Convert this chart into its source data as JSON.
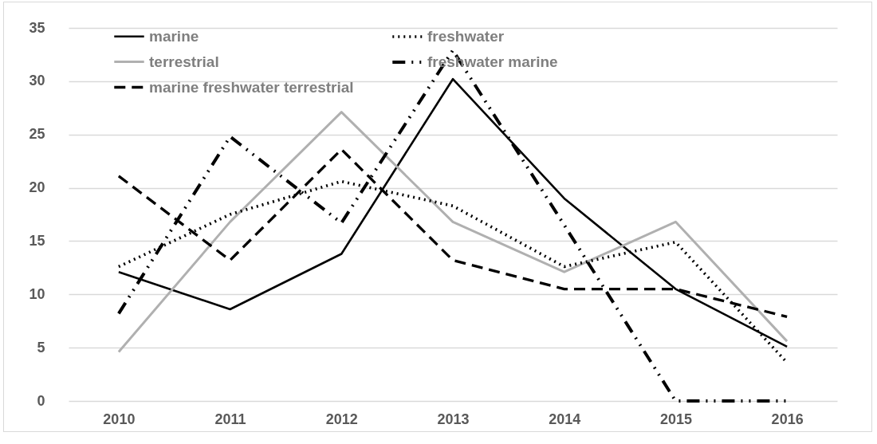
{
  "chart_data": {
    "type": "line",
    "categories": [
      "2010",
      "2011",
      "2012",
      "2013",
      "2014",
      "2015",
      "2016"
    ],
    "ylim": [
      0,
      35
    ],
    "yticks": [
      0,
      5,
      10,
      15,
      20,
      25,
      30,
      35
    ],
    "grid": "y",
    "legend": "top",
    "marker": "none",
    "series": [
      {
        "name": "marine",
        "color": "#000000",
        "line_style": "solid",
        "values": [
          12.1,
          8.6,
          13.8,
          30.2,
          19.0,
          10.5,
          5.1
        ]
      },
      {
        "name": "terrestrial",
        "color": "#b0b0b0",
        "line_style": "solid",
        "values": [
          4.6,
          16.8,
          27.1,
          16.8,
          12.1,
          16.8,
          5.6
        ]
      },
      {
        "name": "marine freshwater terrestrial",
        "color": "#000000",
        "line_style": "dashed",
        "values": [
          21.1,
          13.2,
          23.6,
          13.2,
          10.5,
          10.5,
          7.9
        ]
      },
      {
        "name": "freshwater",
        "color": "#000000",
        "line_style": "dotted",
        "values": [
          12.6,
          17.5,
          20.6,
          18.3,
          12.6,
          14.9,
          3.6
        ]
      },
      {
        "name": "freshwater marine",
        "color": "#000000",
        "line_style": "dashdot",
        "values": [
          8.2,
          24.8,
          16.7,
          32.9,
          16.5,
          0,
          0
        ]
      }
    ]
  }
}
